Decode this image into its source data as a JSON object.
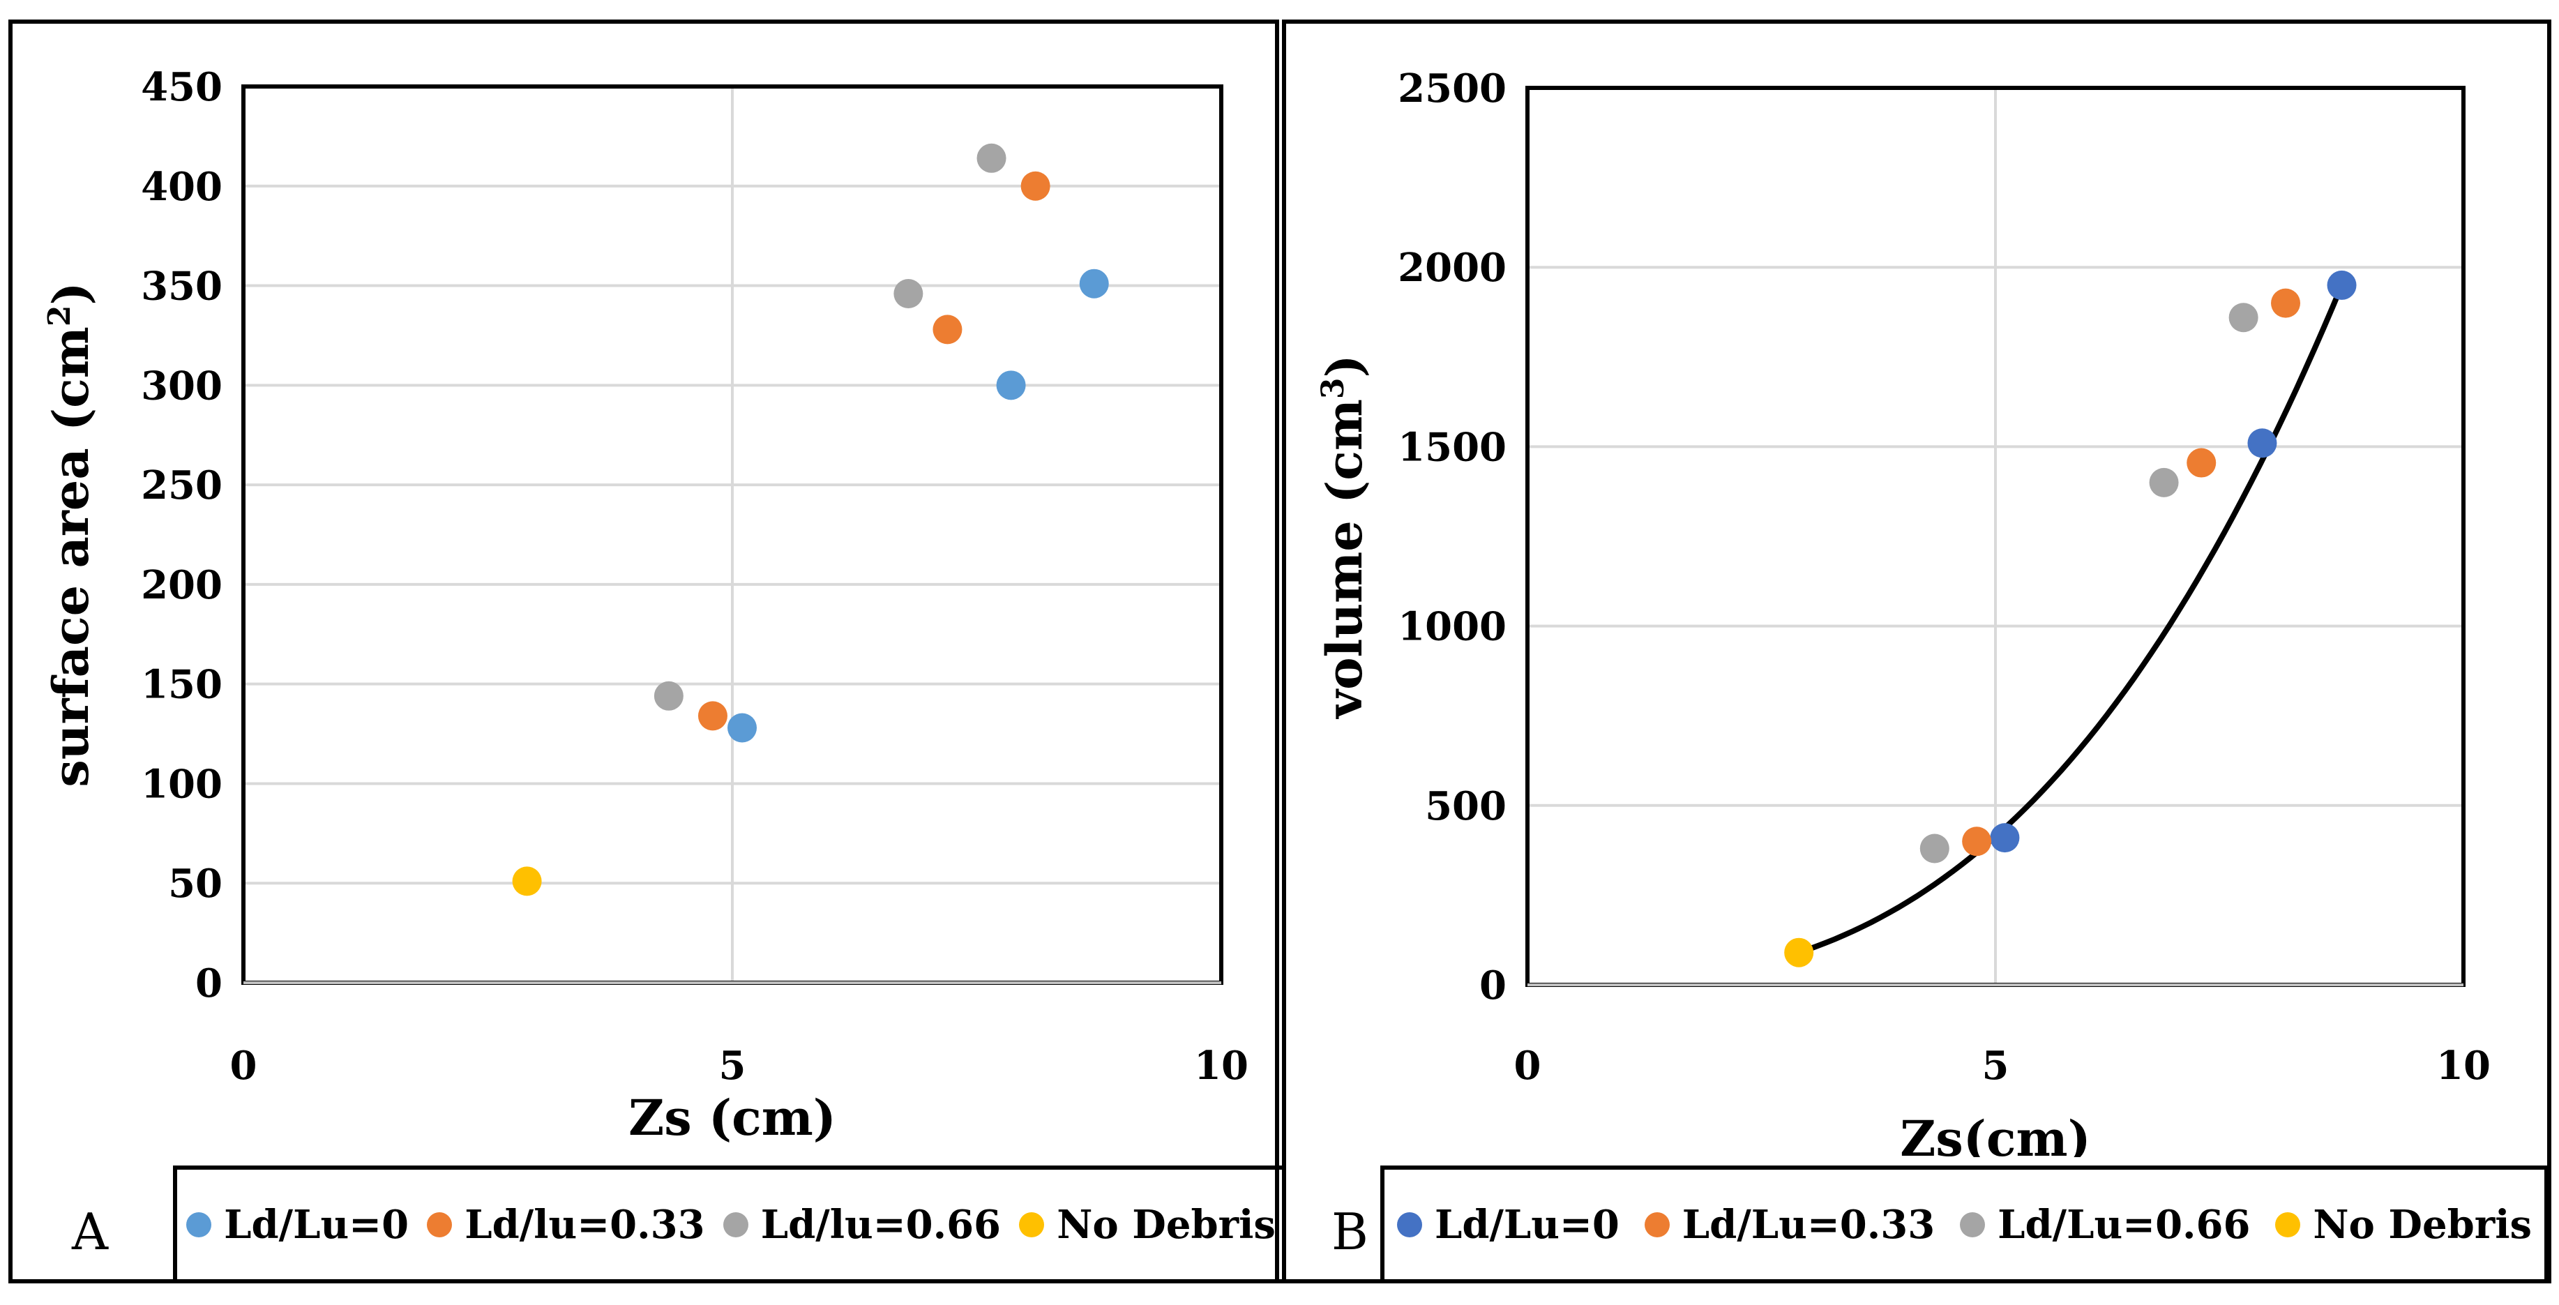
{
  "chart_data": [
    {
      "type": "scatter",
      "panel_label": "A",
      "xlabel": "Zs (cm)",
      "ylabel": "surface area (cm",
      "ylabel_sup": "2",
      "ylabel_end": ")",
      "xlim": [
        0,
        10
      ],
      "ylim": [
        0,
        450
      ],
      "xticks": [
        0,
        5,
        10
      ],
      "yticks": [
        0,
        50,
        100,
        150,
        200,
        250,
        300,
        350,
        400,
        450
      ],
      "grid": true,
      "legend_position": "bottom",
      "series": [
        {
          "name": "Ld/Lu=0",
          "color": "#5b9bd5",
          "x": [
            5.1,
            7.85,
            8.7
          ],
          "y": [
            128,
            300,
            351
          ]
        },
        {
          "name": "Ld/lu=0.33",
          "color": "#ed7d31",
          "x": [
            4.8,
            7.2,
            8.1
          ],
          "y": [
            134,
            328,
            400
          ]
        },
        {
          "name": "Ld/lu=0.66",
          "color": "#a5a5a5",
          "x": [
            4.35,
            6.8,
            7.65
          ],
          "y": [
            144,
            346,
            414
          ]
        },
        {
          "name": "No Debris",
          "color": "#ffc000",
          "x": [
            2.9
          ],
          "y": [
            51
          ]
        }
      ]
    },
    {
      "type": "scatter",
      "panel_label": "B",
      "xlabel": "Zs(cm)",
      "ylabel": "volume (cm",
      "ylabel_sup": "3",
      "ylabel_end": ")",
      "xlim": [
        0,
        10
      ],
      "ylim": [
        0,
        2500
      ],
      "xticks": [
        0,
        5,
        10
      ],
      "yticks": [
        0,
        500,
        1000,
        1500,
        2000,
        2500
      ],
      "grid": true,
      "legend_position": "bottom",
      "trendline": {
        "type": "power",
        "x_from": 2.9,
        "x_to": 8.7,
        "y_from": 90,
        "y_to": 1950,
        "color": "#000000"
      },
      "series": [
        {
          "name": "Ld/Lu=0",
          "color": "#4472c4",
          "x": [
            5.1,
            7.85,
            8.7
          ],
          "y": [
            410,
            1510,
            1950
          ]
        },
        {
          "name": "Ld/Lu=0.33",
          "color": "#ed7d31",
          "x": [
            4.8,
            7.2,
            8.1
          ],
          "y": [
            400,
            1455,
            1900
          ]
        },
        {
          "name": "Ld/Lu=0.66",
          "color": "#a5a5a5",
          "x": [
            4.35,
            6.8,
            7.65
          ],
          "y": [
            380,
            1400,
            1860
          ]
        },
        {
          "name": "No Debris",
          "color": "#ffc000",
          "x": [
            2.9
          ],
          "y": [
            90
          ]
        }
      ]
    }
  ]
}
